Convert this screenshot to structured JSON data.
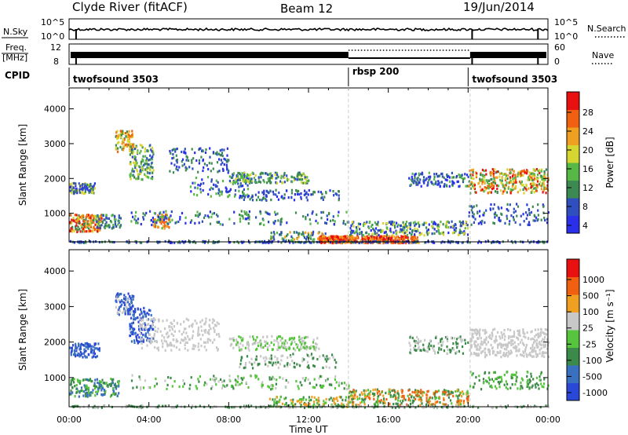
{
  "header": {
    "station": "Clyde River (fitACF)",
    "beam": "Beam 12",
    "date": "19/Jun/2014"
  },
  "top_panels": {
    "nsky_label": "N.Sky",
    "nsearch_label": "N.Search",
    "nsky_ticks": [
      "10^5",
      "10^0"
    ],
    "freq_label_1": "Freq.",
    "freq_label_2": "[MHz]",
    "freq_ticks": [
      "12",
      "8"
    ],
    "nave_label": "Nave",
    "nave_ticks": [
      "60",
      "0"
    ],
    "cpid_label": "CPID",
    "cpid_segments": [
      {
        "name": "twofsound 3503",
        "start_hour": 0,
        "end_hour": 14
      },
      {
        "name": "rbsp 200",
        "start_hour": 14,
        "end_hour": 20
      },
      {
        "name": "twofsound 3503",
        "start_hour": 20,
        "end_hour": 24
      }
    ]
  },
  "colors": {
    "power": [
      "#2a30ea",
      "#2f4fbf",
      "#3c8a52",
      "#58b847",
      "#d6d630",
      "#f0a020",
      "#f06010",
      "#e81010"
    ],
    "velocity": [
      "#2a48d8",
      "#3a70c0",
      "#3c8a4a",
      "#56c43c",
      "#c8c8c8",
      "#f0a020",
      "#f06010",
      "#e81010"
    ]
  },
  "chart_data": [
    {
      "type": "heatmap",
      "title": "Power",
      "xlabel": "",
      "ylabel": "Slant Range [km]",
      "x_ticks": [
        "00:00",
        "04:00",
        "08:00",
        "12:00",
        "16:00",
        "20:00",
        "00:00"
      ],
      "xlim_hours": [
        0,
        24
      ],
      "ylim_km": [
        180,
        4600
      ],
      "y_ticks": [
        1000,
        2000,
        3000,
        4000
      ],
      "colorbar_label": "Power [dB]",
      "colorbar_ticks": [
        "28",
        "24",
        "20",
        "16",
        "12",
        "8",
        "4"
      ],
      "colorbar_range": [
        0,
        30
      ]
    },
    {
      "type": "heatmap",
      "title": "Velocity",
      "xlabel": "Time UT",
      "ylabel": "Slant Range [km]",
      "x_ticks": [
        "00:00",
        "04:00",
        "08:00",
        "12:00",
        "16:00",
        "20:00",
        "00:00"
      ],
      "xlim_hours": [
        0,
        24
      ],
      "ylim_km": [
        180,
        4600
      ],
      "y_ticks": [
        1000,
        2000,
        3000,
        4000
      ],
      "colorbar_label": "Velocity [m s⁻¹]",
      "colorbar_ticks": [
        "1000",
        "500",
        "100",
        "25",
        "-25",
        "-100",
        "-500",
        "-1000"
      ],
      "colorbar_range": [
        -1200,
        1200
      ]
    }
  ]
}
